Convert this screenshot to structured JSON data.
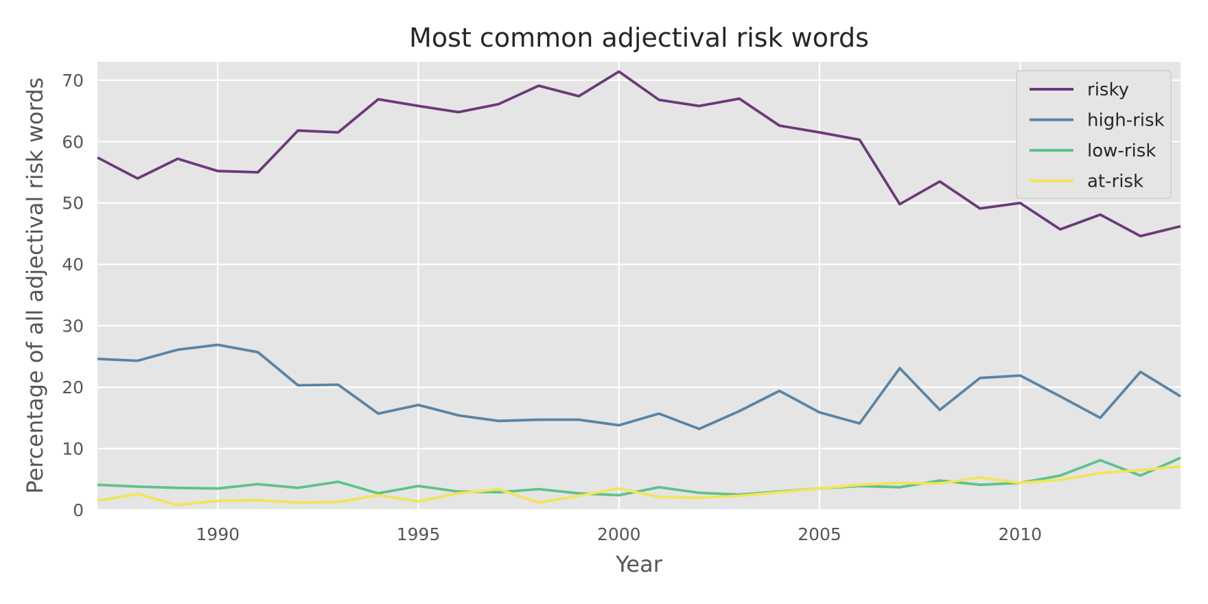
{
  "chart_data": {
    "type": "line",
    "title": "Most common adjectival risk words",
    "xlabel": "Year",
    "ylabel": "Percentage of all adjectival risk words",
    "xlim": [
      1987,
      2014
    ],
    "ylim": [
      0,
      73
    ],
    "xticks": [
      1990,
      1995,
      2000,
      2005,
      2010
    ],
    "yticks": [
      0,
      10,
      20,
      30,
      40,
      50,
      60,
      70
    ],
    "grid": true,
    "legend_position": "top-right",
    "x": [
      1987,
      1988,
      1989,
      1990,
      1991,
      1992,
      1993,
      1994,
      1995,
      1996,
      1997,
      1998,
      1999,
      2000,
      2001,
      2002,
      2003,
      2004,
      2005,
      2006,
      2007,
      2008,
      2009,
      2010,
      2011,
      2012,
      2013,
      2014
    ],
    "series": [
      {
        "name": "risky",
        "color": "#6b3a78",
        "values": [
          57.4,
          54.0,
          57.2,
          55.2,
          55.0,
          61.8,
          61.5,
          66.9,
          65.8,
          64.8,
          66.1,
          69.1,
          67.4,
          71.4,
          66.8,
          65.8,
          67.0,
          62.6,
          61.5,
          60.3,
          49.8,
          53.5,
          49.1,
          50.0,
          45.7,
          48.1,
          44.6,
          46.2
        ]
      },
      {
        "name": "high-risk",
        "color": "#5b84a3",
        "values": [
          24.6,
          24.3,
          26.1,
          26.9,
          25.7,
          20.3,
          20.4,
          15.7,
          17.1,
          15.4,
          14.5,
          14.7,
          14.7,
          13.8,
          15.7,
          13.2,
          16.1,
          19.4,
          15.9,
          14.1,
          23.1,
          16.3,
          21.5,
          21.9,
          18.5,
          15.0,
          22.5,
          18.5
        ]
      },
      {
        "name": "low-risk",
        "color": "#5fc28c",
        "values": [
          4.1,
          3.8,
          3.6,
          3.5,
          4.2,
          3.6,
          4.6,
          2.7,
          3.9,
          3.0,
          2.9,
          3.4,
          2.7,
          2.4,
          3.7,
          2.8,
          2.5,
          3.0,
          3.5,
          3.9,
          3.7,
          4.8,
          4.1,
          4.4,
          5.6,
          8.1,
          5.6,
          8.5
        ]
      },
      {
        "name": "at-risk",
        "color": "#f3e45a",
        "values": [
          1.5,
          2.6,
          0.8,
          1.5,
          1.6,
          1.2,
          1.3,
          2.4,
          1.4,
          2.7,
          3.4,
          1.2,
          2.3,
          3.5,
          2.1,
          2.0,
          2.3,
          2.9,
          3.5,
          4.1,
          4.4,
          4.3,
          5.3,
          4.4,
          4.9,
          6.0,
          6.5,
          7.1
        ]
      }
    ]
  }
}
